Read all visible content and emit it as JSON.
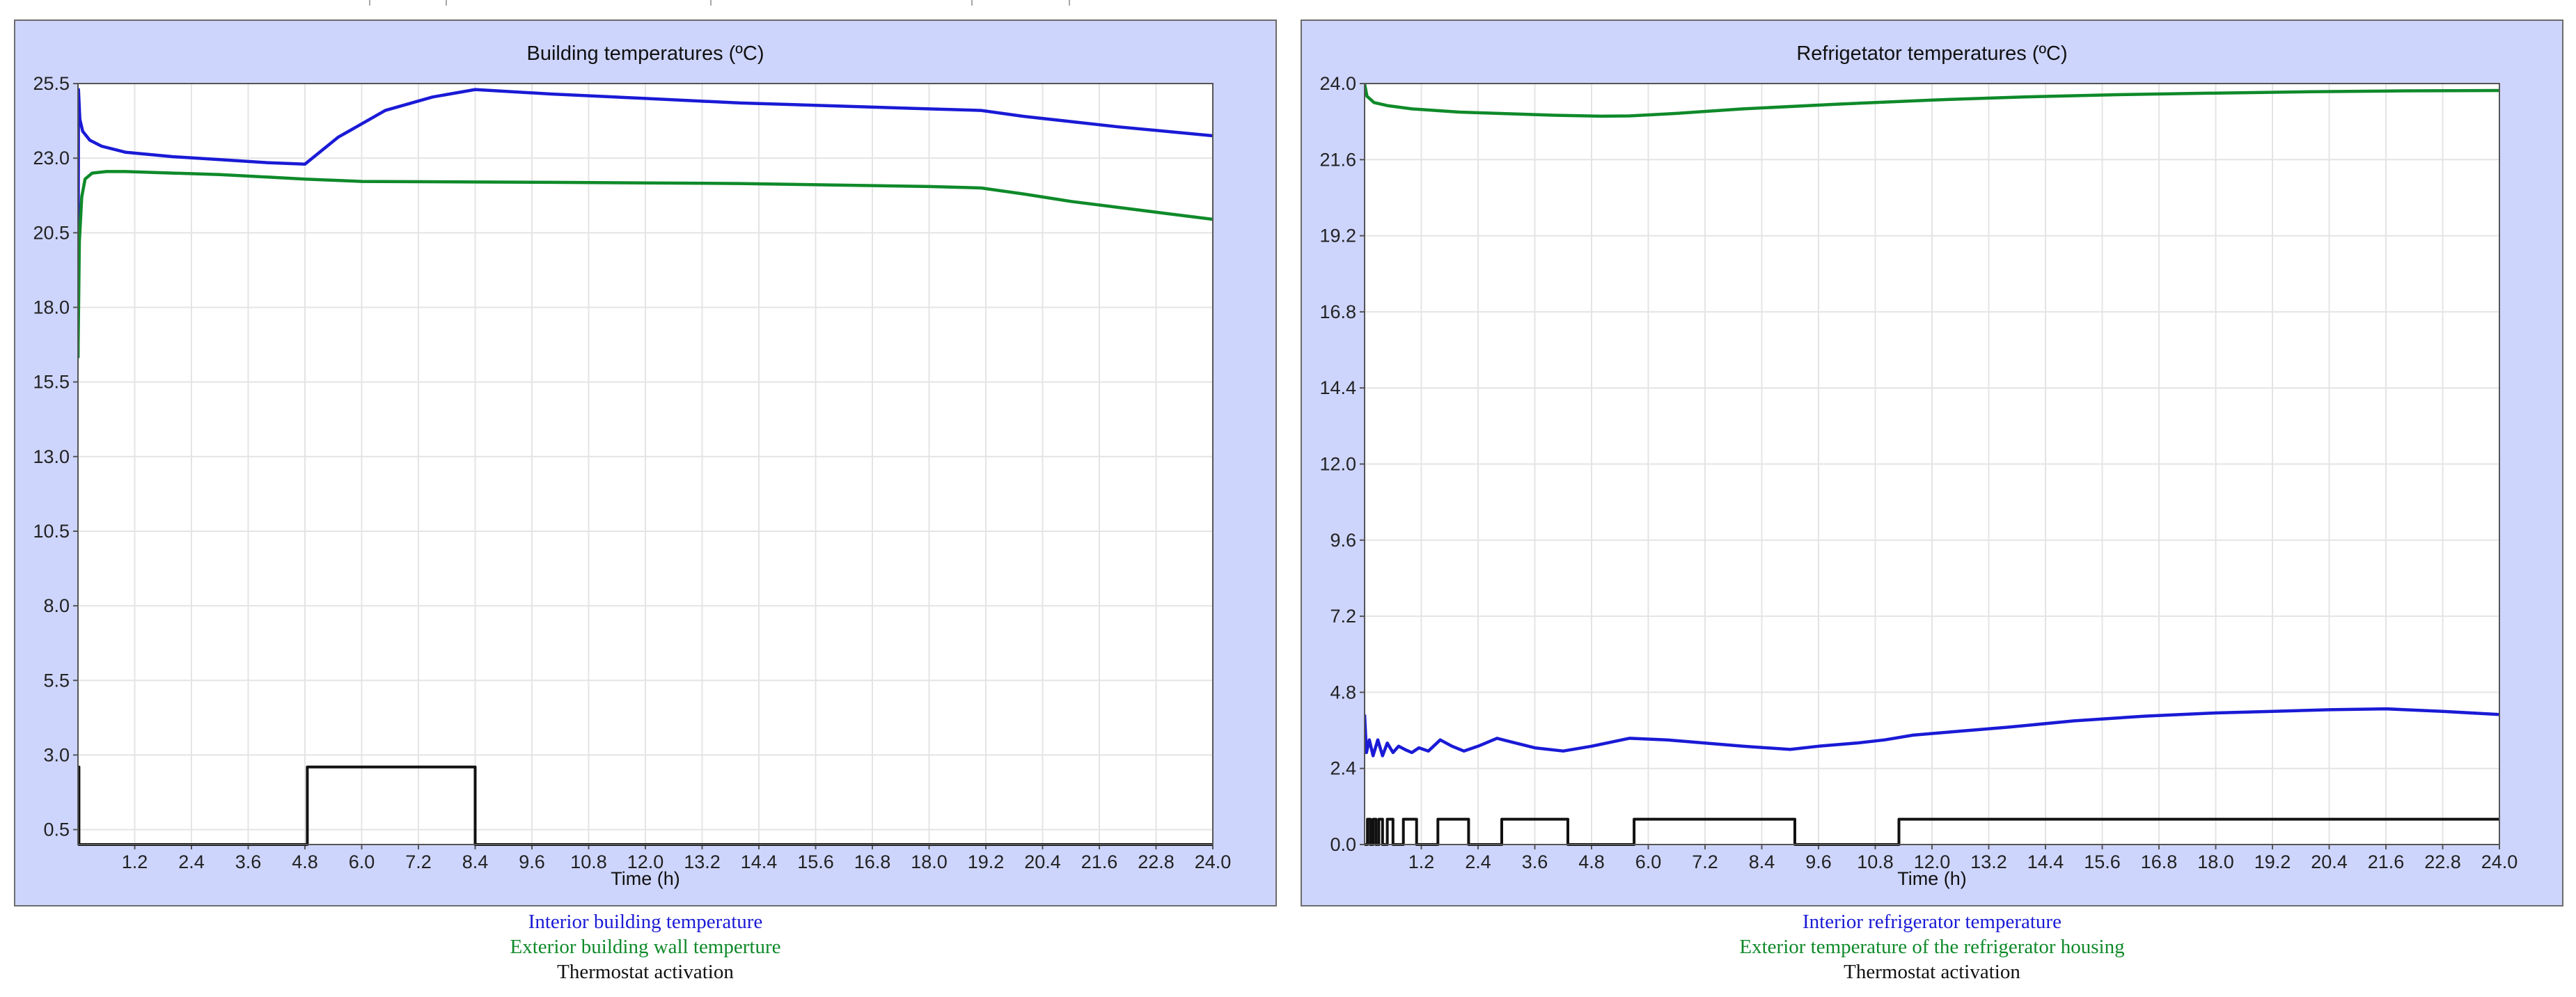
{
  "colors": {
    "panel_background": "#ced5fd",
    "plot_background": "#ffffff",
    "grid": "#e4e4e4",
    "interior": "#1a1ad6",
    "exterior": "#0f8a2a",
    "thermostat": "#111111"
  },
  "chart_data": [
    {
      "type": "line",
      "title": "Building temperatures (ºC)",
      "xlabel": "Time (h)",
      "ylabel": "",
      "xlim": [
        0,
        24
      ],
      "ylim": [
        0,
        25.5
      ],
      "x_ticks": [
        "1.2",
        "2.4",
        "3.6",
        "4.8",
        "6.0",
        "7.2",
        "8.4",
        "9.6",
        "10.8",
        "12.0",
        "13.2",
        "14.4",
        "15.6",
        "16.8",
        "18.0",
        "19.2",
        "20.4",
        "21.6",
        "22.8",
        "24.0"
      ],
      "y_ticks": [
        "25.5",
        "23.0",
        "20.5",
        "18.0",
        "15.5",
        "13.0",
        "10.5",
        "8.0",
        "5.5",
        "3.0",
        "0.5"
      ],
      "grid": true,
      "legend_position": "bottom",
      "series": [
        {
          "name": "Interior building temperature",
          "color": "#1a1ad6",
          "x": [
            0,
            0.01,
            0.04,
            0.1,
            0.25,
            0.5,
            1.0,
            2.0,
            3.0,
            4.0,
            4.8,
            5.5,
            6.5,
            7.5,
            8.4,
            10.0,
            12.0,
            14.0,
            16.0,
            18.0,
            19.1,
            20.0,
            22.0,
            24.0
          ],
          "y": [
            16.3,
            25.3,
            24.3,
            23.9,
            23.6,
            23.4,
            23.2,
            23.05,
            22.95,
            22.85,
            22.8,
            23.7,
            24.6,
            25.05,
            25.3,
            25.15,
            25.0,
            24.85,
            24.75,
            24.65,
            24.6,
            24.4,
            24.05,
            23.75
          ]
        },
        {
          "name": "Exterior building wall temperture",
          "color": "#0f8a2a",
          "x": [
            0,
            0.03,
            0.08,
            0.15,
            0.3,
            0.6,
            1.0,
            2.0,
            3.0,
            4.8,
            6.0,
            8.4,
            10.0,
            12.0,
            14.0,
            16.0,
            18.0,
            19.1,
            20.0,
            21.0,
            22.0,
            23.0,
            24.0
          ],
          "y": [
            16.3,
            20.2,
            21.7,
            22.3,
            22.5,
            22.55,
            22.55,
            22.5,
            22.45,
            22.3,
            22.22,
            22.2,
            22.19,
            22.17,
            22.15,
            22.1,
            22.05,
            22.0,
            21.8,
            21.55,
            21.35,
            21.15,
            20.95
          ]
        },
        {
          "name": "Thermostat activation",
          "color": "#111111",
          "x": [
            0,
            0,
            0.02,
            0.02,
            4.85,
            4.85,
            8.4,
            8.4,
            24.0
          ],
          "y": [
            0,
            2.6,
            2.6,
            0,
            0,
            2.6,
            2.6,
            0,
            0
          ]
        }
      ]
    },
    {
      "type": "line",
      "title": "Refrigetator temperatures (ºC)",
      "xlabel": "Time (h)",
      "ylabel": "",
      "xlim": [
        0,
        24
      ],
      "ylim": [
        0,
        24
      ],
      "x_ticks": [
        "1.2",
        "2.4",
        "3.6",
        "4.8",
        "6.0",
        "7.2",
        "8.4",
        "9.6",
        "10.8",
        "12.0",
        "13.2",
        "14.4",
        "15.6",
        "16.8",
        "18.0",
        "19.2",
        "20.4",
        "21.6",
        "22.8",
        "24.0"
      ],
      "y_ticks": [
        "24.0",
        "21.6",
        "19.2",
        "16.8",
        "14.4",
        "12.0",
        "9.6",
        "7.2",
        "4.8",
        "2.4",
        "0.0"
      ],
      "grid": true,
      "legend_position": "bottom",
      "series": [
        {
          "name": "Interior refrigerator temperature",
          "color": "#1a1ad6",
          "x": [
            0,
            0.04,
            0.1,
            0.18,
            0.28,
            0.38,
            0.48,
            0.6,
            0.72,
            0.85,
            1.0,
            1.15,
            1.35,
            1.6,
            1.85,
            2.1,
            2.4,
            2.8,
            3.2,
            3.6,
            4.2,
            4.8,
            5.6,
            6.4,
            7.2,
            8.0,
            9.0,
            9.6,
            10.4,
            11.0,
            11.6,
            12.4,
            13.6,
            15.0,
            16.5,
            18.0,
            19.2,
            20.4,
            21.6,
            22.8,
            24.0
          ],
          "y": [
            4.1,
            2.9,
            3.3,
            2.8,
            3.3,
            2.8,
            3.2,
            2.9,
            3.1,
            3.0,
            2.9,
            3.05,
            2.95,
            3.3,
            3.1,
            2.95,
            3.1,
            3.35,
            3.2,
            3.05,
            2.95,
            3.1,
            3.35,
            3.3,
            3.2,
            3.1,
            3.0,
            3.1,
            3.2,
            3.3,
            3.45,
            3.55,
            3.7,
            3.9,
            4.05,
            4.15,
            4.2,
            4.25,
            4.28,
            4.2,
            4.1
          ]
        },
        {
          "name": "Exterior temperature of the refrigerator housing",
          "color": "#0f8a2a",
          "x": [
            0,
            0.05,
            0.2,
            0.5,
            1.0,
            2.0,
            3.0,
            4.0,
            5.0,
            5.6,
            6.5,
            8.0,
            10.0,
            12.0,
            14.0,
            16.0,
            18.0,
            20.0,
            22.0,
            24.0
          ],
          "y": [
            24.0,
            23.6,
            23.4,
            23.3,
            23.2,
            23.1,
            23.05,
            23.0,
            22.97,
            22.98,
            23.05,
            23.2,
            23.35,
            23.48,
            23.58,
            23.65,
            23.7,
            23.74,
            23.77,
            23.78
          ]
        },
        {
          "name": "Thermostat activation",
          "color": "#111111",
          "x": [
            0,
            0.06,
            0.06,
            0.12,
            0.12,
            0.18,
            0.18,
            0.24,
            0.24,
            0.3,
            0.3,
            0.38,
            0.38,
            0.48,
            0.48,
            0.6,
            0.6,
            0.82,
            0.82,
            1.1,
            1.1,
            1.55,
            1.55,
            2.2,
            2.2,
            2.9,
            2.9,
            4.3,
            4.3,
            5.7,
            5.7,
            9.1,
            9.1,
            11.3,
            11.3,
            24.0
          ],
          "y": [
            0,
            0,
            0.8,
            0.8,
            0,
            0,
            0.8,
            0.8,
            0,
            0,
            0.8,
            0.8,
            0,
            0,
            0.8,
            0.8,
            0,
            0,
            0.8,
            0.8,
            0,
            0,
            0.8,
            0.8,
            0,
            0,
            0.8,
            0.8,
            0,
            0,
            0.8,
            0.8,
            0,
            0,
            0.8,
            0.8
          ]
        }
      ]
    }
  ]
}
